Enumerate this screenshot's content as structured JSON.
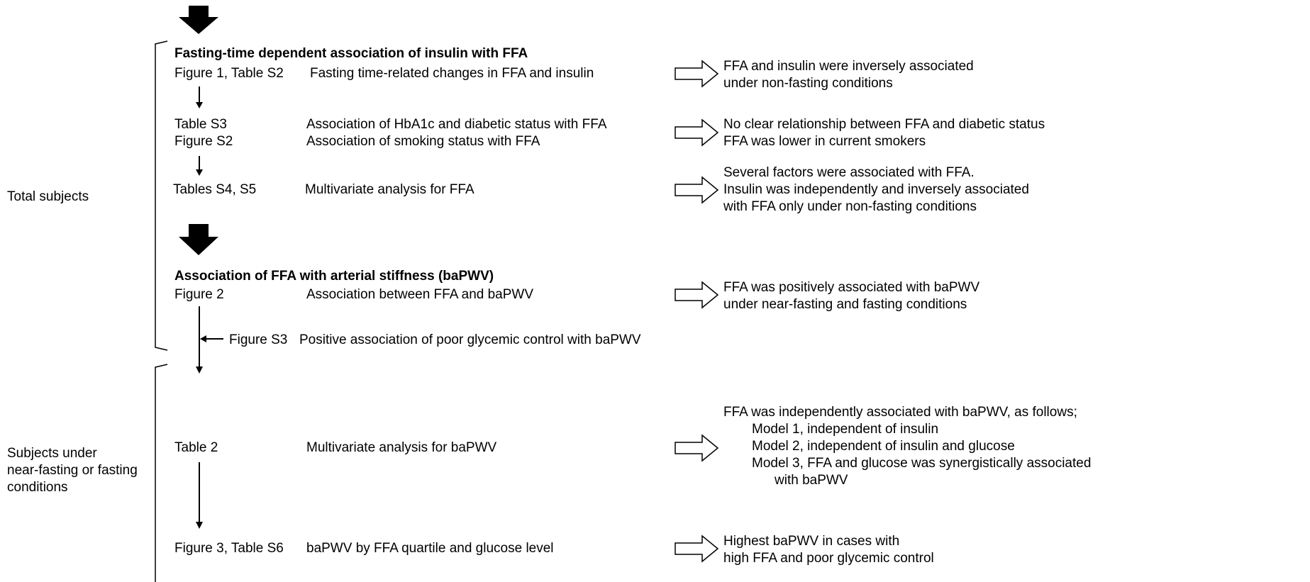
{
  "groups": [
    {
      "label": [
        "Total subjects"
      ]
    },
    {
      "label": [
        "Subjects under",
        "near-fasting or fasting",
        "conditions"
      ]
    }
  ],
  "sections": [
    {
      "title": "Fasting-time dependent association of insulin with FFA"
    },
    {
      "title": "Association of FFA with arterial stiffness (baPWV)"
    }
  ],
  "rows": [
    {
      "items": [
        {
          "ref": "Figure 1, Table S2",
          "description": "Fasting time-related changes in FFA and insulin"
        }
      ],
      "findings": [
        "FFA and insulin were inversely associated",
        "under non-fasting conditions"
      ]
    },
    {
      "items": [
        {
          "ref": "Table S3",
          "description": "Association of HbA1c and diabetic status with FFA"
        },
        {
          "ref": "Figure S2",
          "description": "Association of smoking status with FFA"
        }
      ],
      "findings": [
        "No clear relationship between FFA and diabetic status",
        "FFA was lower in current smokers"
      ]
    },
    {
      "items": [
        {
          "ref": "Tables S4, S5",
          "description": "Multivariate analysis for FFA"
        }
      ],
      "findings": [
        "Several factors were associated with FFA.",
        "Insulin was independently and inversely associated",
        "with FFA only under non-fasting conditions"
      ]
    },
    {
      "items": [
        {
          "ref": "Figure 2",
          "description": "Association between FFA and baPWV"
        }
      ],
      "findings": [
        "FFA was positively associated with baPWV",
        "under near-fasting and fasting conditions"
      ]
    },
    {
      "items": [
        {
          "ref": "Table 2",
          "description": "Multivariate analysis for baPWV"
        }
      ],
      "findings": [
        "FFA was independently associated with baPWV, as follows;",
        "Model 1, independent of insulin",
        "Model 2, independent of insulin and glucose",
        "Model 3, FFA and glucose was synergistically associated",
        "with baPWV"
      ]
    },
    {
      "items": [
        {
          "ref": "Figure 3, Table S6",
          "description": "baPWV by FFA quartile and glucose level"
        }
      ],
      "findings": [
        "Highest baPWV in cases with",
        "high FFA and poor glycemic control"
      ]
    }
  ],
  "side_note": {
    "ref": "Figure S3",
    "description": "Positive association of poor glycemic control with baPWV"
  }
}
